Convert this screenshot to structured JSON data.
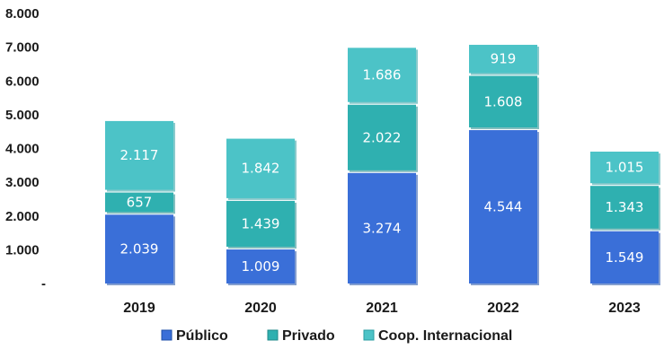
{
  "chart_data": {
    "type": "bar",
    "subtype": "stacked",
    "categories": [
      "2019",
      "2020",
      "2021",
      "2022",
      "2023"
    ],
    "series": [
      {
        "name": "Público",
        "values": [
          2039,
          1009,
          3274,
          4544,
          1549
        ],
        "labels": [
          "2.039",
          "1.009",
          "3.274",
          "4.544",
          "1.549"
        ],
        "color": "#3a6fd8"
      },
      {
        "name": "Privado",
        "values": [
          657,
          1439,
          2022,
          1608,
          1343
        ],
        "labels": [
          "657",
          "1.439",
          "2.022",
          "1.608",
          "1.343"
        ],
        "color": "#2fb0b0"
      },
      {
        "name": "Coop. Internacional",
        "values": [
          2117,
          1842,
          1686,
          919,
          1015
        ],
        "labels": [
          "2.117",
          "1.842",
          "1.686",
          "919",
          "1.015"
        ],
        "color": "#4cc3c7"
      }
    ],
    "ylim": [
      0,
      8000
    ],
    "yticks": [
      "-",
      "1.000",
      "2.000",
      "3.000",
      "4.000",
      "5.000",
      "6.000",
      "7.000",
      "8.000"
    ],
    "grid": false,
    "legend_position": "bottom"
  }
}
